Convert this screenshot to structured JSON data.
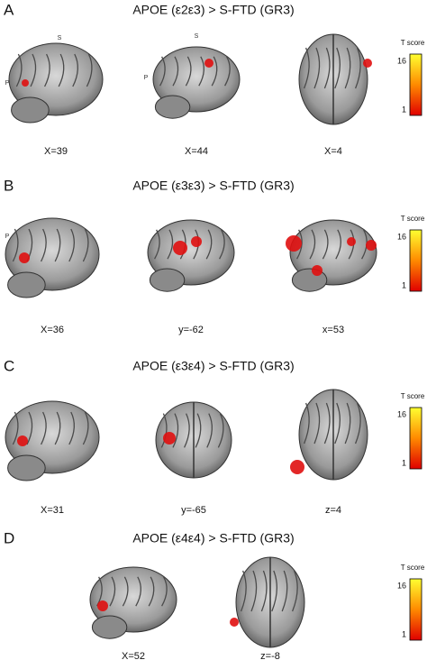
{
  "panels": [
    {
      "letter": "A",
      "title": "APOE (ε2ε3) > S-FTD (GR3)",
      "images": [
        {
          "label": "X=39",
          "marks": [
            "S",
            "P"
          ]
        },
        {
          "label": "X=44",
          "marks": [
            "S",
            "P"
          ]
        },
        {
          "label": "X=4"
        }
      ],
      "colorbar": {
        "title": "T score",
        "max": "16",
        "min": "1"
      }
    },
    {
      "letter": "B",
      "title": "APOE (ε3ε3) > S-FTD (GR3)",
      "images": [
        {
          "label": "X=36",
          "marks": [
            "P"
          ]
        },
        {
          "label": "y=-62"
        },
        {
          "label": "x=53"
        }
      ],
      "colorbar": {
        "title": "T score",
        "max": "16",
        "min": "1"
      }
    },
    {
      "letter": "C",
      "title": "APOE (ε3ε4) > S-FTD (GR3)",
      "images": [
        {
          "label": "X=31"
        },
        {
          "label": "y=-65"
        },
        {
          "label": "z=4"
        }
      ],
      "colorbar": {
        "title": "T score",
        "max": "16",
        "min": "1"
      }
    },
    {
      "letter": "D",
      "title": "APOE (ε4ε4) > S-FTD (GR3)",
      "images": [
        {
          "label": "X=52"
        },
        {
          "label": "z=-8"
        }
      ],
      "colorbar": {
        "title": "T score",
        "max": "16",
        "min": "1"
      }
    }
  ]
}
